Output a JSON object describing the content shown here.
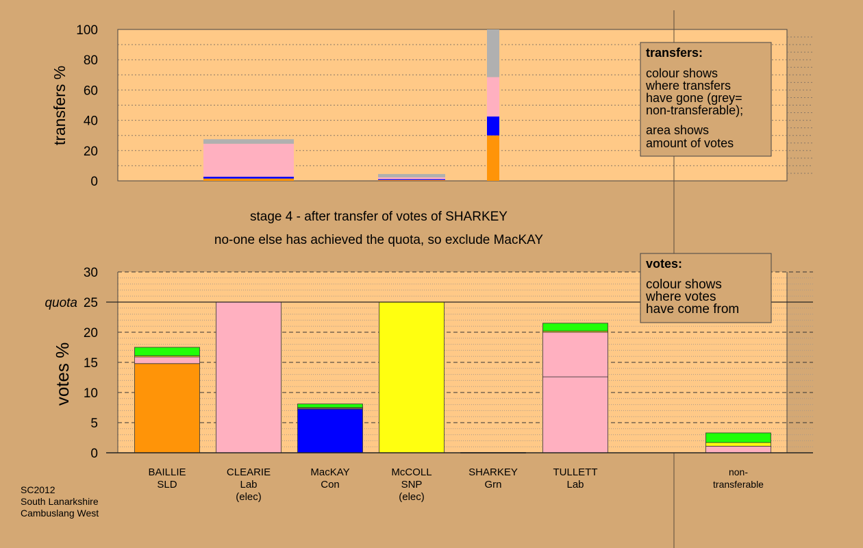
{
  "chart_data": [
    {
      "type": "bar",
      "stacked": true,
      "title": "transfers",
      "ylabel": "transfers %",
      "ylim": [
        0,
        100
      ],
      "yticks": [
        0,
        20,
        40,
        60,
        80,
        100
      ],
      "legend": {
        "title": "transfers:",
        "lines": [
          "colour shows",
          "where transfers",
          "have gone (grey=",
          "non-transferable);"
        ],
        "lines2": [
          "area shows",
          "amount of votes"
        ],
        "placement": "top-right"
      },
      "bars": [
        {
          "candidate": "CLEARIE",
          "segments": [
            {
              "color": "#ff9408",
              "value": 1.5
            },
            {
              "color": "#0000ff",
              "value": 1.2
            },
            {
              "color": "#ffb0c0",
              "value": 21.8
            },
            {
              "color": "#b0b0b0",
              "value": 3.0
            }
          ]
        },
        {
          "candidate": "McCOLL",
          "segments": [
            {
              "color": "#ff9408",
              "value": 0.5
            },
            {
              "color": "#0000ff",
              "value": 0.6
            },
            {
              "color": "#ffb0c0",
              "value": 1.2
            },
            {
              "color": "#b0b0b0",
              "value": 2.2
            }
          ]
        },
        {
          "candidate": "SHARKEY",
          "segments": [
            {
              "color": "#ff9408",
              "value": 30
            },
            {
              "color": "#0000ff",
              "value": 12.5
            },
            {
              "color": "#ffb0c0",
              "value": 26
            },
            {
              "color": "#b0b0b0",
              "value": 31.5
            }
          ]
        }
      ]
    },
    {
      "type": "bar",
      "stacked": true,
      "ylabel": "votes %",
      "ylim": [
        0,
        30
      ],
      "yticks": [
        0,
        5,
        10,
        15,
        20,
        25,
        30
      ],
      "quota": 25,
      "quota_label": "quota",
      "legend": {
        "title": "votes:",
        "lines": [
          "colour shows",
          "where votes",
          "have come from"
        ],
        "placement": "top-right"
      },
      "categories": [
        [
          "BAILLIE",
          "SLD"
        ],
        [
          "CLEARIE",
          "Lab",
          "(elec)"
        ],
        [
          "MacKAY",
          "Con"
        ],
        [
          "McCOLL",
          "SNP",
          "(elec)"
        ],
        [
          "SHARKEY",
          "Grn"
        ],
        [
          "TULLETT",
          "Lab"
        ],
        [
          "non-",
          "transferable"
        ]
      ],
      "bars": [
        [
          {
            "color": "#ff9408",
            "value": 14.8
          },
          {
            "color": "#ffb0c0",
            "value": 1.1
          },
          {
            "color": "#ffff10",
            "value": 0.2
          },
          {
            "color": "#20ff08",
            "value": 1.4
          }
        ],
        [
          {
            "color": "#ffb0c0",
            "value": 25
          }
        ],
        [
          {
            "color": "#0000ff",
            "value": 7.25
          },
          {
            "color": "#ffb0c0",
            "value": 0.15
          },
          {
            "color": "#ffff10",
            "value": 0.1
          },
          {
            "color": "#20ff08",
            "value": 0.6
          }
        ],
        [
          {
            "color": "#ffff10",
            "value": 25
          }
        ],
        [
          {
            "color": "#20ff08",
            "value": 0.05
          }
        ],
        [
          {
            "color": "#ffb0c0",
            "value": 12.6
          },
          {
            "color": "#ffb0c0",
            "value": 7.4
          },
          {
            "color": "#ffff10",
            "value": 0.2
          },
          {
            "color": "#20ff08",
            "value": 1.3
          }
        ],
        [
          {
            "color": "#ffb0c0",
            "value": 1.1
          },
          {
            "color": "#ffff10",
            "value": 0.6
          },
          {
            "color": "#20ff08",
            "value": 1.6
          }
        ]
      ]
    }
  ],
  "stage_title": "stage 4 - after transfer of votes of SHARKEY",
  "stage_subtitle": "no-one else has achieved the quota, so exclude MacKAY",
  "footer": [
    "SC2012",
    "South Lanarkshire",
    "Cambuslang West"
  ]
}
